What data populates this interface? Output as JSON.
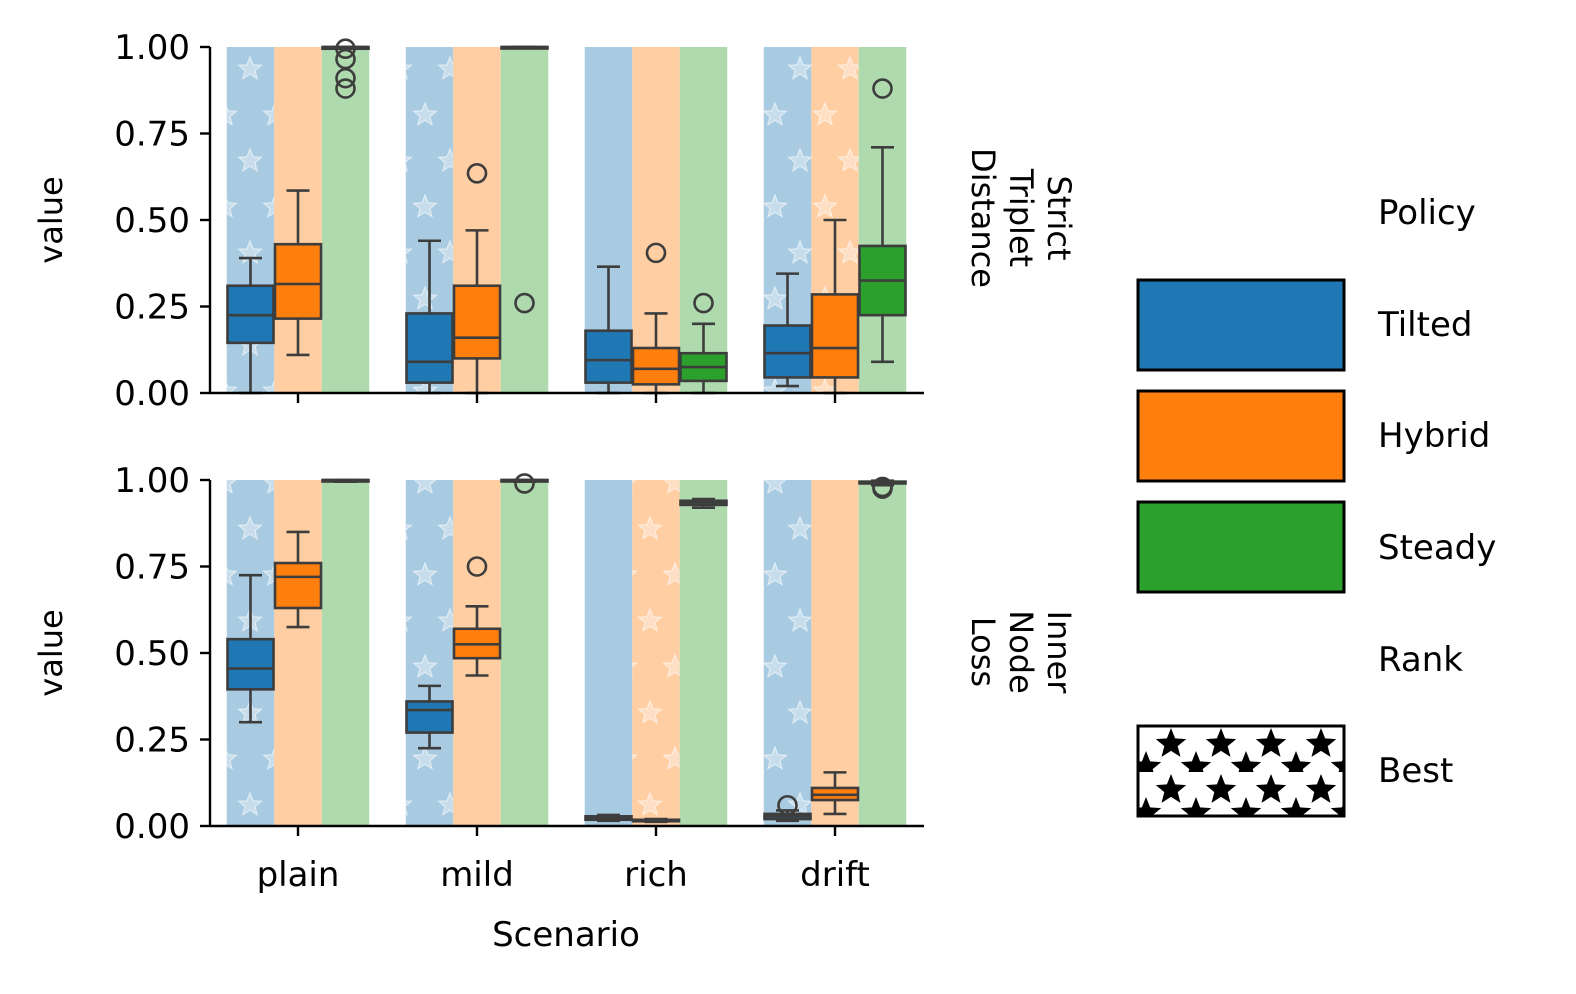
{
  "chart_data": {
    "type": "box",
    "categories": [
      "plain",
      "mild",
      "rich",
      "drift"
    ],
    "xlabel": "Scenario",
    "ylabel": "value",
    "ylim": [
      0,
      1
    ],
    "yticks": [
      "0.00",
      "0.25",
      "0.50",
      "0.75",
      "1.00"
    ],
    "colors": {
      "Tilted": "#1f77b4",
      "Hybrid": "#ff7f0e",
      "Steady": "#2ca02c",
      "box_edge": "#3d3d3d"
    },
    "legend": {
      "policy_title": "Policy",
      "policies": [
        "Tilted",
        "Hybrid",
        "Steady"
      ],
      "rank_title": "Rank",
      "rank_entries": [
        "Best"
      ],
      "placement": "right"
    },
    "panels": [
      {
        "label": "Strict Triplet Distance",
        "label_lines": [
          "Strict",
          "Triplet",
          "Distance"
        ],
        "groups": [
          {
            "category": "plain",
            "boxes": [
              {
                "series": "Tilted",
                "best": true,
                "min": 0.0,
                "q1": 0.145,
                "median": 0.225,
                "q3": 0.31,
                "max": 0.39,
                "outliers": []
              },
              {
                "series": "Hybrid",
                "best": false,
                "min": 0.11,
                "q1": 0.215,
                "median": 0.315,
                "q3": 0.43,
                "max": 0.585,
                "outliers": []
              },
              {
                "series": "Steady",
                "best": false,
                "min": 0.995,
                "q1": 0.995,
                "median": 1.0,
                "q3": 1.0,
                "max": 1.0,
                "outliers": [
                  0.88,
                  0.91,
                  0.965,
                  0.995
                ]
              }
            ]
          },
          {
            "category": "mild",
            "boxes": [
              {
                "series": "Tilted",
                "best": true,
                "min": 0.0,
                "q1": 0.03,
                "median": 0.09,
                "q3": 0.23,
                "max": 0.44,
                "outliers": []
              },
              {
                "series": "Hybrid",
                "best": false,
                "min": 0.0,
                "q1": 0.1,
                "median": 0.16,
                "q3": 0.31,
                "max": 0.47,
                "outliers": [
                  0.635
                ]
              },
              {
                "series": "Steady",
                "best": false,
                "min": 1.0,
                "q1": 1.0,
                "median": 1.0,
                "q3": 1.0,
                "max": 1.0,
                "outliers": [
                  0.26
                ]
              }
            ]
          },
          {
            "category": "rich",
            "boxes": [
              {
                "series": "Tilted",
                "best": false,
                "min": 0.0,
                "q1": 0.03,
                "median": 0.095,
                "q3": 0.18,
                "max": 0.365,
                "outliers": []
              },
              {
                "series": "Hybrid",
                "best": false,
                "min": 0.0,
                "q1": 0.025,
                "median": 0.07,
                "q3": 0.13,
                "max": 0.23,
                "outliers": [
                  0.405
                ]
              },
              {
                "series": "Steady",
                "best": false,
                "min": 0.0,
                "q1": 0.035,
                "median": 0.075,
                "q3": 0.115,
                "max": 0.2,
                "outliers": [
                  0.26
                ]
              }
            ]
          },
          {
            "category": "drift",
            "boxes": [
              {
                "series": "Tilted",
                "best": true,
                "min": 0.02,
                "q1": 0.045,
                "median": 0.115,
                "q3": 0.195,
                "max": 0.345,
                "outliers": []
              },
              {
                "series": "Hybrid",
                "best": true,
                "min": 0.0,
                "q1": 0.045,
                "median": 0.13,
                "q3": 0.285,
                "max": 0.5,
                "outliers": []
              },
              {
                "series": "Steady",
                "best": false,
                "min": 0.09,
                "q1": 0.225,
                "median": 0.325,
                "q3": 0.425,
                "max": 0.71,
                "outliers": [
                  0.88
                ]
              }
            ]
          }
        ]
      },
      {
        "label": "Inner Node Loss",
        "label_lines": [
          "Inner",
          "Node",
          "Loss"
        ],
        "groups": [
          {
            "category": "plain",
            "boxes": [
              {
                "series": "Tilted",
                "best": true,
                "min": 0.3,
                "q1": 0.395,
                "median": 0.455,
                "q3": 0.54,
                "max": 0.725,
                "outliers": []
              },
              {
                "series": "Hybrid",
                "best": false,
                "min": 0.575,
                "q1": 0.63,
                "median": 0.72,
                "q3": 0.76,
                "max": 0.85,
                "outliers": []
              },
              {
                "series": "Steady",
                "best": false,
                "min": 0.995,
                "q1": 0.998,
                "median": 1.0,
                "q3": 1.0,
                "max": 1.0,
                "outliers": []
              }
            ]
          },
          {
            "category": "mild",
            "boxes": [
              {
                "series": "Tilted",
                "best": true,
                "min": 0.225,
                "q1": 0.27,
                "median": 0.335,
                "q3": 0.36,
                "max": 0.405,
                "outliers": []
              },
              {
                "series": "Hybrid",
                "best": false,
                "min": 0.435,
                "q1": 0.485,
                "median": 0.525,
                "q3": 0.57,
                "max": 0.635,
                "outliers": [
                  0.75
                ]
              },
              {
                "series": "Steady",
                "best": false,
                "min": 0.995,
                "q1": 0.998,
                "median": 1.0,
                "q3": 1.0,
                "max": 1.0,
                "outliers": [
                  0.99
                ]
              }
            ]
          },
          {
            "category": "rich",
            "boxes": [
              {
                "series": "Tilted",
                "best": false,
                "min": 0.015,
                "q1": 0.018,
                "median": 0.022,
                "q3": 0.028,
                "max": 0.032,
                "outliers": []
              },
              {
                "series": "Hybrid",
                "best": true,
                "min": 0.012,
                "q1": 0.014,
                "median": 0.016,
                "q3": 0.018,
                "max": 0.02,
                "outliers": []
              },
              {
                "series": "Steady",
                "best": false,
                "min": 0.92,
                "q1": 0.928,
                "median": 0.935,
                "q3": 0.94,
                "max": 0.945,
                "outliers": []
              }
            ]
          },
          {
            "category": "drift",
            "boxes": [
              {
                "series": "Tilted",
                "best": true,
                "min": 0.015,
                "q1": 0.02,
                "median": 0.028,
                "q3": 0.035,
                "max": 0.045,
                "outliers": [
                  0.06
                ]
              },
              {
                "series": "Hybrid",
                "best": false,
                "min": 0.035,
                "q1": 0.075,
                "median": 0.09,
                "q3": 0.11,
                "max": 0.155,
                "outliers": []
              },
              {
                "series": "Steady",
                "best": false,
                "min": 0.985,
                "q1": 0.99,
                "median": 0.993,
                "q3": 0.995,
                "max": 0.998,
                "outliers": [
                  0.975,
                  0.98
                ]
              }
            ]
          }
        ]
      }
    ]
  }
}
